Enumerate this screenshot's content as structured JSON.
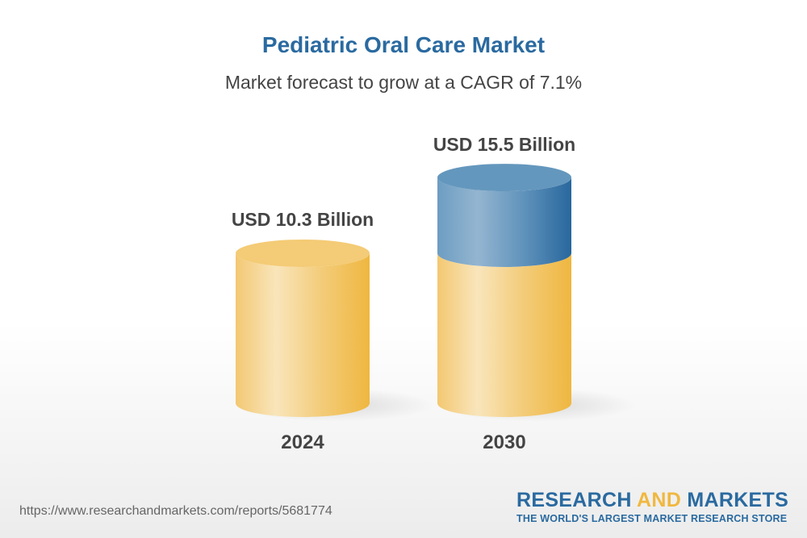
{
  "chart_data": {
    "type": "bar",
    "title": "Pediatric Oral Care Market",
    "subtitle": "Market forecast to grow at a CAGR of 7.1%",
    "categories": [
      "2024",
      "2030"
    ],
    "values": [
      10.3,
      15.5
    ],
    "value_labels": [
      "USD 10.3 Billion",
      "USD 15.5 Billion"
    ],
    "unit": "USD Billion",
    "style": "3d-cylinder",
    "colors": {
      "base": "#f2c35e",
      "growth": "#4f86b5"
    },
    "grid": false
  },
  "footer": {
    "url": "https://www.researchandmarkets.com/reports/5681774",
    "logo_part1": "RESEARCH",
    "logo_part2": "AND",
    "logo_part3": "MARKETS",
    "logo_tagline": "THE WORLD'S LARGEST MARKET RESEARCH STORE"
  }
}
